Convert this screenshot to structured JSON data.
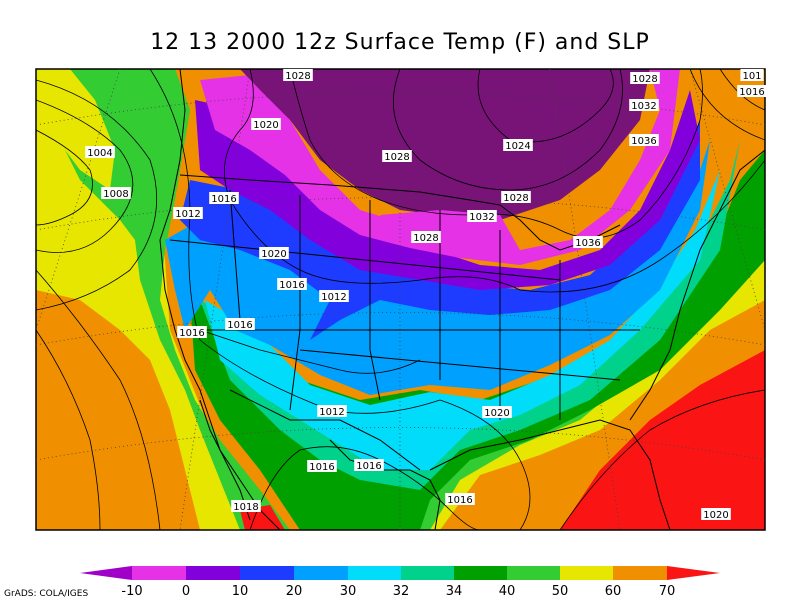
{
  "title": "12 13 2000 12z Surface Temp (F) and SLP",
  "credit": "GrADS: COLA/IGES",
  "colors": {
    "below_neg10": "#a000c8",
    "neg10_0": "#e632e6",
    "0_10": "#8200dc",
    "10_20": "#1e3cff",
    "20_30": "#00a0ff",
    "30_32": "#00dcfa",
    "32_34": "#00d28c",
    "34_40": "#00a000",
    "40_50": "#33cc33",
    "50_60": "#e6e600",
    "60_70": "#f09000",
    "above_70": "#fa1414",
    "deep_cold": "#781478"
  },
  "colorbar": {
    "labels": [
      "-10",
      "0",
      "10",
      "20",
      "30",
      "32",
      "34",
      "40",
      "50",
      "60",
      "70"
    ]
  },
  "isobar_labels": [
    {
      "text": "1028"
    },
    {
      "text": "1028"
    },
    {
      "text": "101"
    },
    {
      "text": "1016"
    },
    {
      "text": "1032"
    },
    {
      "text": "1036"
    },
    {
      "text": "1020"
    },
    {
      "text": "1028"
    },
    {
      "text": "1024"
    },
    {
      "text": "1004"
    },
    {
      "text": "1008"
    },
    {
      "text": "1016"
    },
    {
      "text": "1012"
    },
    {
      "text": "1028"
    },
    {
      "text": "1032"
    },
    {
      "text": "1028"
    },
    {
      "text": "1036"
    },
    {
      "text": "1020"
    },
    {
      "text": "1016"
    },
    {
      "text": "1012"
    },
    {
      "text": "1016"
    },
    {
      "text": "1016"
    },
    {
      "text": "1012"
    },
    {
      "text": "1020"
    },
    {
      "text": "1016"
    },
    {
      "text": "1016"
    },
    {
      "text": "1018"
    },
    {
      "text": "1016"
    },
    {
      "text": "1020"
    }
  ]
}
